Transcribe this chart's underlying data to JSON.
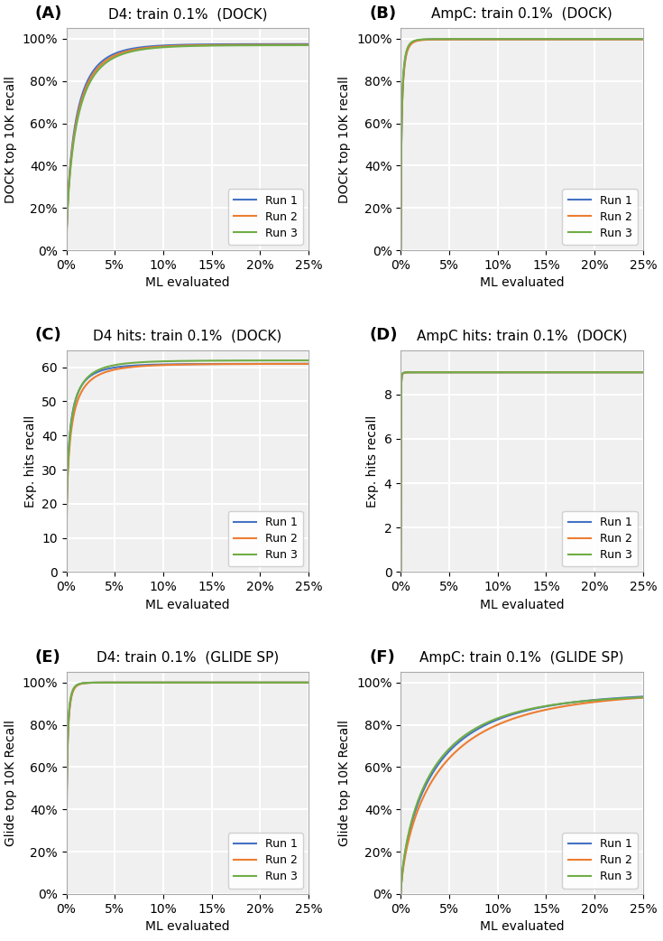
{
  "panels": [
    {
      "label": "(A)",
      "title": "D4: train 0.1%  (DOCK)",
      "ylabel": "DOCK top 10K recall",
      "type": "percent_recall",
      "curve_type": "smooth_fast",
      "ylim": [
        0,
        1.05
      ],
      "yticks": [
        0,
        0.2,
        0.4,
        0.6,
        0.8,
        1.0
      ],
      "runs": [
        {
          "color": "#4472c4",
          "label": "Run 1",
          "asymptote": 0.975,
          "speed": 25
        },
        {
          "color": "#ed7d31",
          "label": "Run 2",
          "asymptote": 0.972,
          "speed": 24
        },
        {
          "color": "#70ad47",
          "label": "Run 3",
          "asymptote": 0.97,
          "speed": 23
        }
      ]
    },
    {
      "label": "(B)",
      "title": "AmpC: train 0.1%  (DOCK)",
      "ylabel": "DOCK top 10K recall",
      "type": "percent_recall",
      "curve_type": "smooth_very_fast",
      "ylim": [
        0,
        1.05
      ],
      "yticks": [
        0,
        0.2,
        0.4,
        0.6,
        0.8,
        1.0
      ],
      "runs": [
        {
          "color": "#4472c4",
          "label": "Run 1",
          "asymptote": 0.998,
          "speed": 60
        },
        {
          "color": "#ed7d31",
          "label": "Run 2",
          "asymptote": 0.997,
          "speed": 58
        },
        {
          "color": "#70ad47",
          "label": "Run 3",
          "asymptote": 0.999,
          "speed": 62
        }
      ]
    },
    {
      "label": "(C)",
      "title": "D4 hits: train 0.1%  (DOCK)",
      "ylabel": "Exp. hits recall",
      "type": "step_hits",
      "curve_type": "step_fast",
      "ylim": [
        0,
        65
      ],
      "yticks": [
        0,
        10,
        20,
        30,
        40,
        50,
        60
      ],
      "runs": [
        {
          "color": "#4472c4",
          "label": "Run 1",
          "asymptote": 61,
          "speed": 18
        },
        {
          "color": "#ed7d31",
          "label": "Run 2",
          "asymptote": 61,
          "speed": 16
        },
        {
          "color": "#70ad47",
          "label": "Run 3",
          "asymptote": 62,
          "speed": 17
        }
      ]
    },
    {
      "label": "(D)",
      "title": "AmpC hits: train 0.1%  (DOCK)",
      "ylabel": "Exp. hits recall",
      "type": "step_hits",
      "curve_type": "step_very_fast",
      "ylim": [
        0,
        10
      ],
      "yticks": [
        0,
        2,
        4,
        6,
        8
      ],
      "runs": [
        {
          "color": "#4472c4",
          "label": "Run 1",
          "asymptote": 9,
          "speed": 60
        },
        {
          "color": "#ed7d31",
          "label": "Run 2",
          "asymptote": 9,
          "speed": 58
        },
        {
          "color": "#70ad47",
          "label": "Run 3",
          "asymptote": 9,
          "speed": 62
        }
      ]
    },
    {
      "label": "(E)",
      "title": "D4: train 0.1%  (GLIDE SP)",
      "ylabel": "Glide top 10K Recall",
      "type": "percent_recall",
      "curve_type": "smooth_very_fast",
      "ylim": [
        0,
        1.05
      ],
      "yticks": [
        0,
        0.2,
        0.4,
        0.6,
        0.8,
        1.0
      ],
      "runs": [
        {
          "color": "#4472c4",
          "label": "Run 1",
          "asymptote": 1.0,
          "speed": 65
        },
        {
          "color": "#ed7d31",
          "label": "Run 2",
          "asymptote": 1.0,
          "speed": 63
        },
        {
          "color": "#70ad47",
          "label": "Run 3",
          "asymptote": 1.0,
          "speed": 67
        }
      ]
    },
    {
      "label": "(F)",
      "title": "AmpC: train 0.1%  (GLIDE SP)",
      "ylabel": "Glide top 10K Recall",
      "type": "percent_recall",
      "curve_type": "smooth_medium",
      "ylim": [
        0,
        1.05
      ],
      "yticks": [
        0,
        0.2,
        0.4,
        0.6,
        0.8,
        1.0
      ],
      "runs": [
        {
          "color": "#4472c4",
          "label": "Run 1",
          "asymptote": 0.955,
          "speed": 10
        },
        {
          "color": "#ed7d31",
          "label": "Run 2",
          "asymptote": 0.96,
          "speed": 9
        },
        {
          "color": "#70ad47",
          "label": "Run 3",
          "asymptote": 0.948,
          "speed": 10.5
        }
      ]
    }
  ],
  "bg_color": "#f0f0f0",
  "grid_color": "white",
  "xlabel": "ML evaluated",
  "xlim": [
    0,
    0.25
  ],
  "xticks": [
    0,
    0.05,
    0.1,
    0.15,
    0.2,
    0.25
  ]
}
